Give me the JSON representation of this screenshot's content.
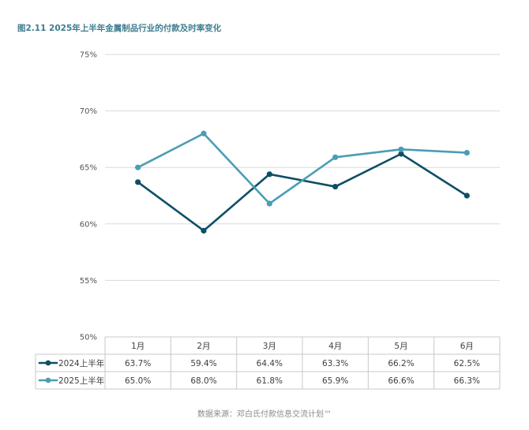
{
  "title": "图2.11 2025年上半年金属制品行业的付款及时率变化",
  "source": "数据来源：邓白氏付款信息交流计划™",
  "colors": {
    "series_2024": "#0d4f66",
    "series_2025": "#4a9db5",
    "grid": "#d9d9d9",
    "table_border": "#c8c8c8",
    "text": "#404040",
    "title": "#3e7d90"
  },
  "chart_data": {
    "type": "line",
    "title": "图2.11 2025年上半年金属制品行业的付款及时率变化",
    "xlabel": "",
    "ylabel": "",
    "categories": [
      "1月",
      "2月",
      "3月",
      "4月",
      "5月",
      "6月"
    ],
    "ylim": [
      50,
      75
    ],
    "yticks": [
      50,
      55,
      60,
      65,
      70,
      75
    ],
    "ytick_labels": [
      "50%",
      "55%",
      "60%",
      "65%",
      "70%",
      "75%"
    ],
    "grid": true,
    "legend": "table-left",
    "series": [
      {
        "name": "2024上半年",
        "values": [
          63.7,
          59.4,
          64.4,
          63.3,
          66.2,
          62.5
        ],
        "labels": [
          "63.7%",
          "59.4%",
          "64.4%",
          "63.3%",
          "66.2%",
          "62.5%"
        ]
      },
      {
        "name": "2025上半年",
        "values": [
          65.0,
          68.0,
          61.8,
          65.9,
          66.6,
          66.3
        ],
        "labels": [
          "65.0%",
          "68.0%",
          "61.8%",
          "65.9%",
          "66.6%",
          "66.3%"
        ]
      }
    ]
  }
}
